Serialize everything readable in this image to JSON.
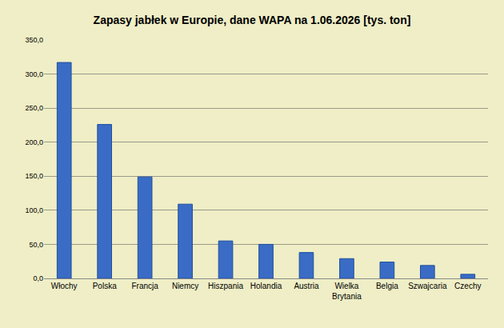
{
  "chart_data": {
    "type": "bar",
    "title": "Zapasy jabłek w Europie, dane WAPA na 1.06.2026 [tys. ton]",
    "categories": [
      "Włochy",
      "Polska",
      "Francja",
      "Niemcy",
      "Hiszpania",
      "Holandia",
      "Austria",
      "Wielka Brytania",
      "Belgia",
      "Szwajcaria",
      "Czechy"
    ],
    "values": [
      317,
      226,
      149,
      109,
      55,
      50,
      38,
      29,
      24,
      19,
      6
    ],
    "color": "#3a6cc6",
    "ylim": [
      0,
      350
    ],
    "yticks": [
      {
        "value": 0,
        "label": "0,0"
      },
      {
        "value": 50,
        "label": "50,0"
      },
      {
        "value": 100,
        "label": "100,0"
      },
      {
        "value": 150,
        "label": "150,0"
      },
      {
        "value": 200,
        "label": "200,0"
      },
      {
        "value": 250,
        "label": "250,0"
      },
      {
        "value": 300,
        "label": "300,0"
      },
      {
        "value": 350,
        "label": "350,0"
      }
    ],
    "grid": true
  }
}
